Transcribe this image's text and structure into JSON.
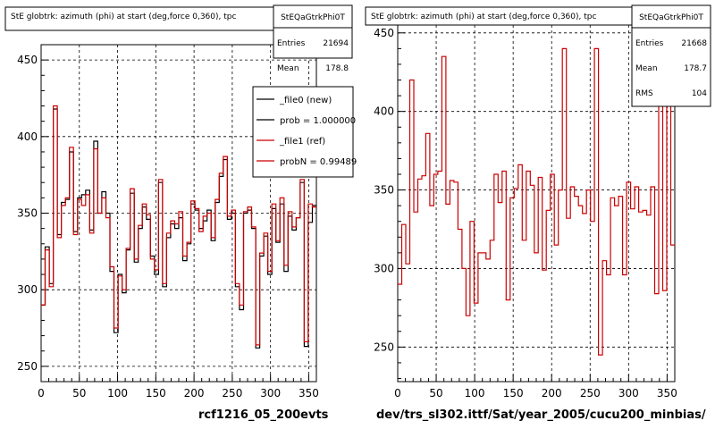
{
  "chart_data": [
    {
      "type": "line",
      "title": "StE globtrk: azimuth (phi) at start (deg,force 0,360), tpc",
      "xlabel": "rcf1216_05_200evts",
      "ylabel": "",
      "xlim": [
        0,
        360
      ],
      "ylim": [
        240,
        460
      ],
      "xticks": [
        "0",
        "50",
        "100",
        "150",
        "200",
        "250",
        "300",
        "350"
      ],
      "yticks": [
        "250",
        "300",
        "350",
        "400",
        "450"
      ],
      "grid": true,
      "stats": {
        "name": "StEQaGtrkPhi0T",
        "rows": [
          {
            "label": "Entries",
            "value": "21694"
          },
          {
            "label": "Mean",
            "value": "178.8"
          }
        ]
      },
      "legend": {
        "placement": "top-right",
        "entries": [
          {
            "label": "_file0 (new)",
            "color": "#000000"
          },
          {
            "label": "prob = 1.000000",
            "color": "#000000"
          },
          {
            "label": "_file1 (ref)",
            "color": "#cc0000"
          },
          {
            "label": "probN = 0.99489",
            "color": "#cc0000"
          }
        ]
      },
      "series": [
        {
          "color": "#000000",
          "values": [
            290,
            328,
            304,
            418,
            336,
            357,
            359,
            390,
            338,
            360,
            362,
            365,
            339,
            397,
            350,
            364,
            350,
            312,
            272,
            310,
            298,
            326,
            363,
            318,
            340,
            354,
            346,
            322,
            310,
            370,
            302,
            334,
            343,
            340,
            347,
            319,
            330,
            356,
            352,
            340,
            345,
            352,
            332,
            357,
            374,
            385,
            346,
            350,
            302,
            287,
            350,
            352,
            340,
            262,
            322,
            335,
            310,
            353,
            331,
            356,
            312,
            348,
            339,
            347,
            370,
            263,
            344,
            355
          ]
        },
        {
          "color": "#cc0000",
          "values": [
            290,
            326,
            302,
            420,
            334,
            355,
            360,
            393,
            336,
            359,
            355,
            362,
            337,
            392,
            350,
            360,
            347,
            315,
            275,
            309,
            300,
            327,
            366,
            320,
            342,
            356,
            349,
            320,
            313,
            372,
            304,
            337,
            345,
            343,
            351,
            322,
            331,
            358,
            353,
            338,
            348,
            350,
            334,
            359,
            376,
            387,
            348,
            352,
            304,
            290,
            351,
            354,
            341,
            264,
            324,
            337,
            312,
            356,
            332,
            360,
            316,
            351,
            341,
            347,
            372,
            266,
            356,
            354
          ]
        }
      ]
    },
    {
      "type": "line",
      "title": "StE globtrk: azimuth (phi) at start (deg,force 0,360), tpc",
      "xlabel": "dev/trs_sl302.ittf/Sat/year_2005/cucu200_minbias/",
      "ylabel": "",
      "xlim": [
        0,
        360
      ],
      "ylim": [
        228,
        455
      ],
      "xticks": [
        "0",
        "50",
        "100",
        "150",
        "200",
        "250",
        "300",
        "350"
      ],
      "yticks": [
        "250",
        "300",
        "350",
        "400",
        "450"
      ],
      "grid": true,
      "stats": {
        "name": "StEQaGtrkPhi0T",
        "rows": [
          {
            "label": "Entries",
            "value": "21668"
          },
          {
            "label": "Mean",
            "value": "178.7"
          },
          {
            "label": "RMS",
            "value": "104"
          }
        ]
      },
      "series": [
        {
          "color": "#cc0000",
          "values": [
            290,
            328,
            303,
            420,
            336,
            357,
            359,
            386,
            340,
            360,
            362,
            435,
            341,
            356,
            355,
            325,
            300,
            270,
            330,
            278,
            310,
            310,
            306,
            318,
            360,
            342,
            362,
            280,
            345,
            351,
            366,
            318,
            362,
            353,
            310,
            358,
            299,
            337,
            360,
            315,
            350,
            440,
            332,
            352,
            346,
            340,
            335,
            350,
            330,
            440,
            245,
            305,
            296,
            345,
            340,
            346,
            296,
            355,
            338,
            352,
            336,
            337,
            334,
            352,
            284,
            412,
            286,
            430,
            315
          ]
        }
      ]
    }
  ]
}
